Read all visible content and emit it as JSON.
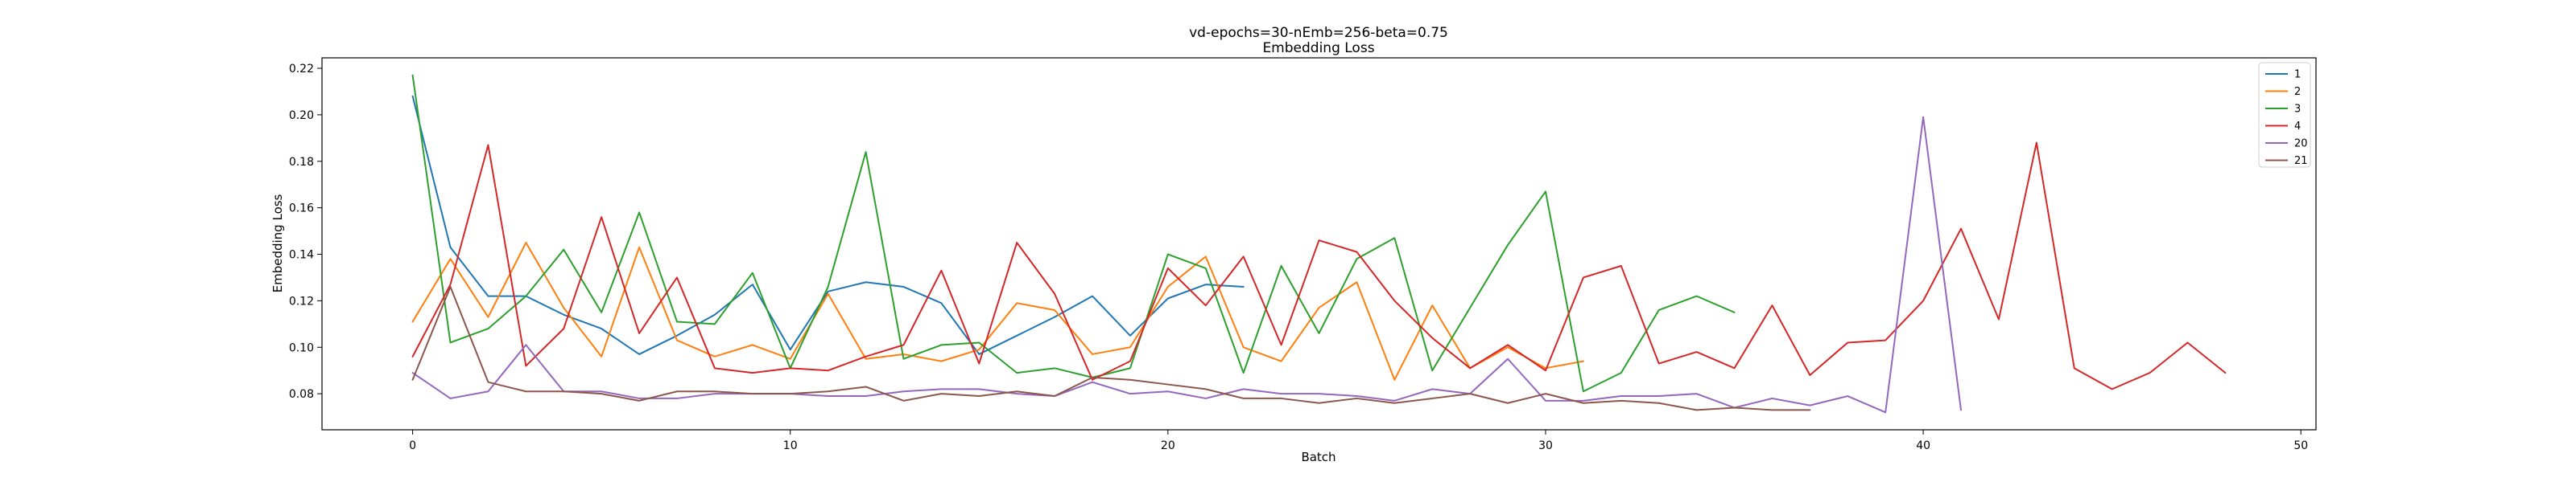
{
  "chart_data": {
    "type": "line",
    "title": "vd-epochs=30-nEmb=256-beta=0.75",
    "subtitle": "Embedding Loss",
    "xlabel": "Batch",
    "ylabel": "Embedding Loss",
    "xlim": [
      -2.4,
      50.4
    ],
    "ylim": [
      0.0645,
      0.2245
    ],
    "xticks": [
      0,
      10,
      20,
      30,
      40,
      50
    ],
    "yticks": [
      0.08,
      0.1,
      0.12,
      0.14,
      0.16,
      0.18,
      0.2,
      0.22
    ],
    "ytick_labels": [
      "0.08",
      "0.10",
      "0.12",
      "0.14",
      "0.16",
      "0.18",
      "0.20",
      "0.22"
    ],
    "grid": false,
    "legend_position": "top-right",
    "series": [
      {
        "name": "1",
        "color": "#1f77b4",
        "values": [
          0.208,
          0.143,
          0.122,
          0.122,
          0.114,
          0.108,
          0.097,
          0.105,
          0.114,
          0.127,
          0.099,
          0.124,
          0.128,
          0.126,
          0.119,
          0.097,
          0.105,
          0.113,
          0.122,
          0.105,
          0.121,
          0.127,
          0.126
        ]
      },
      {
        "name": "2",
        "color": "#ff7f0e",
        "values": [
          0.111,
          0.138,
          0.113,
          0.145,
          0.117,
          0.096,
          0.143,
          0.103,
          0.096,
          0.101,
          0.095,
          0.123,
          0.095,
          0.097,
          0.094,
          0.099,
          0.119,
          0.116,
          0.097,
          0.1,
          0.126,
          0.139,
          0.1,
          0.094,
          0.117,
          0.128,
          0.086,
          0.118,
          0.091,
          0.1,
          0.091,
          0.094
        ]
      },
      {
        "name": "3",
        "color": "#2ca02c",
        "values": [
          0.217,
          0.102,
          0.108,
          0.122,
          0.142,
          0.115,
          0.158,
          0.111,
          0.11,
          0.132,
          0.091,
          0.126,
          0.184,
          0.095,
          0.101,
          0.102,
          0.089,
          0.091,
          0.087,
          0.091,
          0.14,
          0.134,
          0.089,
          0.135,
          0.106,
          0.138,
          0.147,
          0.09,
          0.117,
          0.144,
          0.167,
          0.081,
          0.089,
          0.116,
          0.122,
          0.115
        ]
      },
      {
        "name": "4",
        "color": "#d62728",
        "values": [
          0.096,
          0.127,
          0.187,
          0.092,
          0.108,
          0.156,
          0.106,
          0.13,
          0.091,
          0.089,
          0.091,
          0.09,
          0.096,
          0.101,
          0.133,
          0.093,
          0.145,
          0.123,
          0.086,
          0.094,
          0.134,
          0.118,
          0.139,
          0.101,
          0.146,
          0.141,
          0.12,
          0.104,
          0.091,
          0.101,
          0.09,
          0.13,
          0.135,
          0.093,
          0.098,
          0.091,
          0.118,
          0.088,
          0.102,
          0.103,
          0.12,
          0.151,
          0.112,
          0.188,
          0.091,
          0.082,
          0.089,
          0.102,
          0.089
        ]
      },
      {
        "name": "20",
        "color": "#9467bd",
        "values": [
          0.089,
          0.078,
          0.081,
          0.101,
          0.081,
          0.081,
          0.078,
          0.078,
          0.08,
          0.08,
          0.08,
          0.079,
          0.079,
          0.081,
          0.082,
          0.082,
          0.08,
          0.079,
          0.085,
          0.08,
          0.081,
          0.078,
          0.082,
          0.08,
          0.08,
          0.079,
          0.077,
          0.082,
          0.08,
          0.095,
          0.077,
          0.077,
          0.079,
          0.079,
          0.08,
          0.074,
          0.078,
          0.075,
          0.079,
          0.072,
          0.199,
          0.073
        ]
      },
      {
        "name": "21",
        "color": "#8c564b",
        "values": [
          0.086,
          0.126,
          0.085,
          0.081,
          0.081,
          0.08,
          0.077,
          0.081,
          0.081,
          0.08,
          0.08,
          0.081,
          0.083,
          0.077,
          0.08,
          0.079,
          0.081,
          0.079,
          0.087,
          0.086,
          0.084,
          0.082,
          0.078,
          0.078,
          0.076,
          0.078,
          0.076,
          0.078,
          0.08,
          0.076,
          0.08,
          0.076,
          0.077,
          0.076,
          0.073,
          0.074,
          0.073,
          0.073
        ]
      }
    ]
  }
}
